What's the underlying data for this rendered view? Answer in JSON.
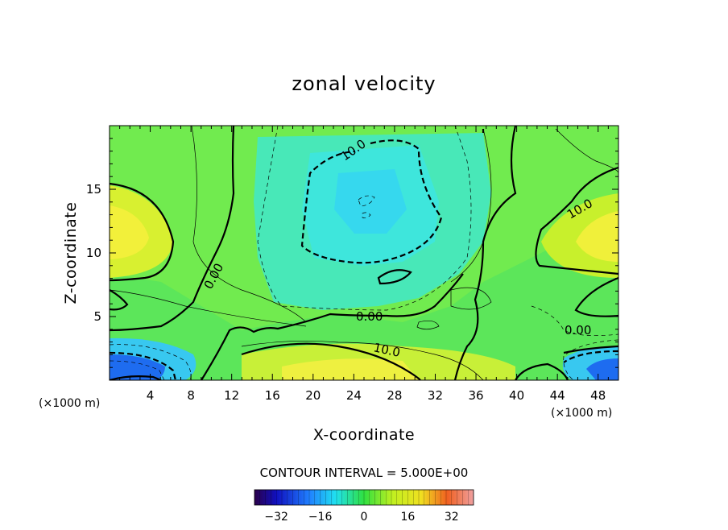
{
  "chart_data": {
    "type": "heatmap",
    "title": "zonal velocity",
    "xlabel": "X-coordinate",
    "ylabel": "Z-coordinate",
    "x_unit": "(×1000 m)",
    "xlim": [
      0,
      50
    ],
    "ylim": [
      0,
      20
    ],
    "xticks": [
      "4",
      "8",
      "12",
      "16",
      "20",
      "24",
      "28",
      "32",
      "36",
      "40",
      "44",
      "48"
    ],
    "yticks": [
      "5",
      "10",
      "15"
    ],
    "contour_labels": [
      "10.0",
      "0.00",
      "0.00",
      "10.0",
      "0.00",
      "10.0"
    ],
    "contour_interval": "CONTOUR INTERVAL = 5.000E+00",
    "colorbar": {
      "range": [
        -40,
        40
      ],
      "ticks": [
        "−32",
        "−16",
        "0",
        "16",
        "32"
      ]
    },
    "colors": {
      "strong_negative": "#1a3cff",
      "weak_negative": "#2ee6f0",
      "zero": "#55e85a",
      "weak_positive": "#b8f02a",
      "positive": "#f0f030"
    }
  }
}
